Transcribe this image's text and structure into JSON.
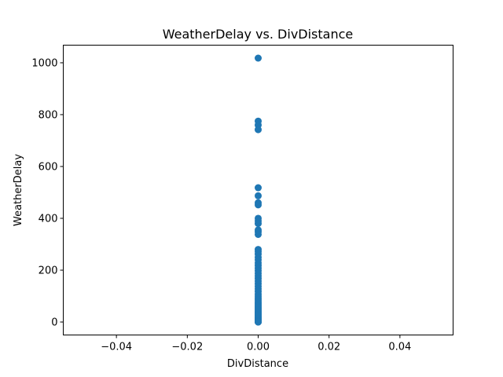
{
  "chart_data": {
    "type": "scatter",
    "title": "WeatherDelay vs. DivDistance",
    "xlabel": "DivDistance",
    "ylabel": "WeatherDelay",
    "xlim": [
      -0.055,
      0.055
    ],
    "ylim": [
      -50,
      1068
    ],
    "xticks": [
      -0.04,
      -0.02,
      0.0,
      0.02,
      0.04
    ],
    "xtick_labels": [
      "−0.04",
      "−0.02",
      "0.00",
      "0.02",
      "0.04"
    ],
    "yticks": [
      0,
      200,
      400,
      600,
      800,
      1000
    ],
    "ytick_labels": [
      "0",
      "200",
      "400",
      "600",
      "800",
      "1000"
    ],
    "grid": false,
    "legend": "none",
    "marker_color": "#1f77b4",
    "series": [
      {
        "x": [
          0,
          0,
          0,
          0,
          0,
          0,
          0,
          0,
          0,
          0,
          0,
          0,
          0,
          0,
          0,
          0,
          0,
          0,
          0,
          0,
          0,
          0,
          0,
          0,
          0,
          0,
          0,
          0,
          0,
          0,
          0,
          0,
          0,
          0,
          0,
          0,
          0,
          0,
          0,
          0,
          0,
          0,
          0,
          0,
          0,
          0,
          0,
          0,
          0,
          0,
          0,
          0,
          0,
          0,
          0,
          0,
          0,
          0,
          0,
          0,
          0,
          0,
          0
        ],
        "y": [
          1018,
          775,
          760,
          742,
          518,
          487,
          460,
          452,
          400,
          390,
          380,
          355,
          348,
          338,
          280,
          272,
          262,
          250,
          240,
          228,
          218,
          208,
          198,
          188,
          178,
          168,
          158,
          148,
          138,
          128,
          118,
          108,
          100,
          92,
          85,
          78,
          72,
          66,
          60,
          55,
          50,
          45,
          40,
          36,
          32,
          28,
          24,
          20,
          17,
          14,
          12,
          10,
          8,
          7,
          6,
          5,
          4,
          3,
          2,
          1,
          0,
          0,
          0
        ]
      }
    ]
  }
}
